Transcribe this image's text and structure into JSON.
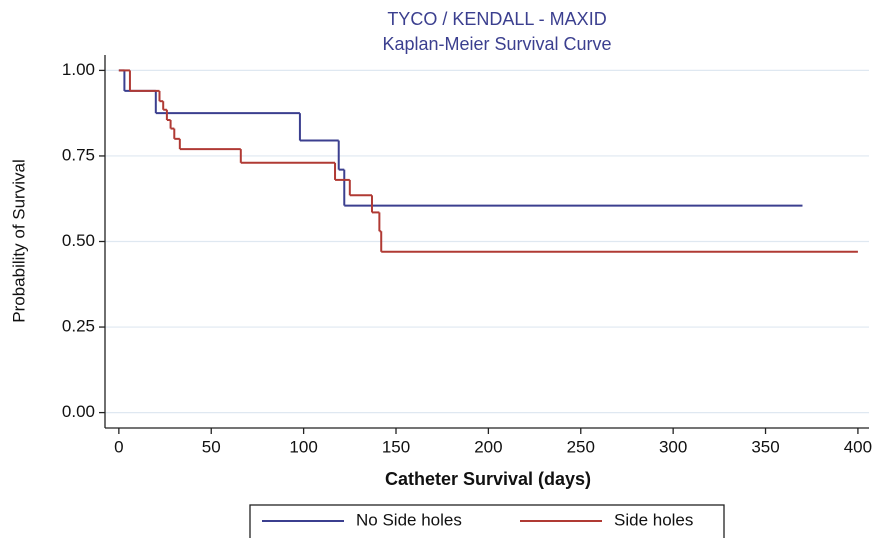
{
  "chart_data": {
    "type": "line",
    "step": "post",
    "title": "TYCO / KENDALL - MAXID",
    "subtitle": "Kaplan-Meier Survival Curve",
    "x_label": "Catheter Survival (days)",
    "y_label": "Probability of Survival",
    "xlim": [
      -7.5,
      406
    ],
    "ylim": [
      -0.045,
      1.045
    ],
    "xticks": [
      0,
      50,
      100,
      150,
      200,
      250,
      300,
      350,
      400
    ],
    "yticks": [
      {
        "value": 0,
        "label": "0.00"
      },
      0.25,
      {
        "value": 0.5,
        "label": "0.50"
      },
      0.75,
      {
        "value": 1,
        "label": "1.00"
      }
    ],
    "grid": true,
    "legend": "bottom",
    "series": [
      {
        "name": "No Side holes",
        "color": "#3b3f8f",
        "x": [
          0,
          3,
          20,
          98,
          119,
          122,
          370
        ],
        "values": [
          1,
          0.94,
          0.875,
          0.795,
          0.71,
          0.605,
          0.605
        ]
      },
      {
        "name": "Side holes",
        "color": "#b03a34",
        "x": [
          0,
          6,
          22,
          24,
          26,
          28,
          30,
          33,
          66,
          117,
          125,
          137,
          141,
          142,
          400
        ],
        "values": [
          1,
          0.94,
          0.91,
          0.885,
          0.855,
          0.83,
          0.8,
          0.77,
          0.73,
          0.68,
          0.635,
          0.585,
          0.53,
          0.47,
          0.47
        ]
      }
    ]
  }
}
